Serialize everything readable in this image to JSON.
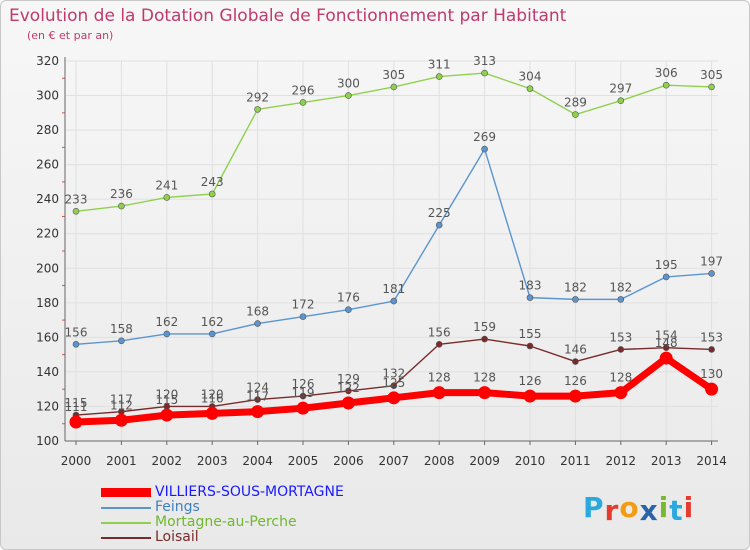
{
  "header": {
    "title": "Evolution de la Dotation Globale de Fonctionnement par Habitant",
    "subtitle": "(en € et par an)"
  },
  "colors": {
    "title": "#c03a6c",
    "grid": "#e0e0e0",
    "axis": "#666666",
    "tick_text": "#333333",
    "value_text": "#555555"
  },
  "logo": {
    "letters": [
      "P",
      "r",
      "o",
      "x",
      "i",
      "t",
      "i"
    ],
    "letter_colors": [
      "#2aa9df",
      "#e63b2e",
      "#f39c12",
      "#2a63a8",
      "#7ab82f",
      "#2aa9df",
      "#e63b2e"
    ]
  },
  "chart_data": {
    "type": "line",
    "title": "Evolution de la Dotation Globale de Fonctionnement par Habitant",
    "subtitle": "(en € et par an)",
    "x": [
      2000,
      2001,
      2002,
      2003,
      2004,
      2005,
      2006,
      2007,
      2008,
      2009,
      2010,
      2011,
      2012,
      2013,
      2014
    ],
    "x_ticks": [
      "2000",
      "2001",
      "2002",
      "2003",
      "2004",
      "2005",
      "2006",
      "2007",
      "2008",
      "2009",
      "2010",
      "2011",
      "2012",
      "2013",
      "2014"
    ],
    "ylim": [
      100,
      320
    ],
    "y_ticks": [
      "100",
      "120",
      "140",
      "160",
      "180",
      "200",
      "220",
      "240",
      "260",
      "280",
      "300",
      "320"
    ],
    "grid": true,
    "legend_position": "bottom-left",
    "series": [
      {
        "name": "VILLIERS-SOUS-MORTAGNE",
        "color": "#ff0000",
        "legend_color": "#1a1aff",
        "emphasis": true,
        "values": [
          111,
          112,
          115,
          116,
          117,
          119,
          122,
          125,
          128,
          128,
          126,
          126,
          128,
          148,
          130
        ],
        "labels": [
          "111",
          "112",
          "115",
          "116",
          "117",
          "119",
          "122",
          "125",
          "128",
          "128",
          "126",
          "126",
          "128",
          "148",
          "130"
        ]
      },
      {
        "name": "Feings",
        "color": "#5b95cf",
        "legend_color": "#3f7fbf",
        "emphasis": false,
        "values": [
          156,
          158,
          162,
          162,
          168,
          172,
          176,
          181,
          225,
          269,
          183,
          182,
          182,
          195,
          197
        ],
        "labels": [
          "156",
          "158",
          "162",
          "162",
          "168",
          "172",
          "176",
          "181",
          "225",
          "269",
          "183",
          "182",
          "182",
          "195",
          "197"
        ]
      },
      {
        "name": "Mortagne-au-Perche",
        "color": "#8fd14f",
        "legend_color": "#6fb82f",
        "emphasis": false,
        "values": [
          233,
          236,
          241,
          243,
          292,
          296,
          300,
          305,
          311,
          313,
          304,
          289,
          297,
          306,
          305
        ],
        "labels": [
          "233",
          "236",
          "241",
          "243",
          "292",
          "296",
          "300",
          "305",
          "311",
          "313",
          "304",
          "289",
          "297",
          "306",
          "305"
        ]
      },
      {
        "name": "Loisail",
        "color": "#7a2a2a",
        "legend_color": "#7a2a2a",
        "emphasis": false,
        "values": [
          115,
          117,
          120,
          120,
          124,
          126,
          129,
          132,
          156,
          159,
          155,
          146,
          153,
          154,
          153
        ],
        "labels": [
          "115",
          "117",
          "120",
          "120",
          "124",
          "126",
          "129",
          "132",
          "156",
          "159",
          "155",
          "146",
          "153",
          "154",
          "153"
        ]
      }
    ]
  }
}
